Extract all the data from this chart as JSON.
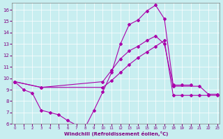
{
  "xlabel": "Windchill (Refroidissement éolien,°C)",
  "bg_color": "#c8eef0",
  "line_color": "#aa00aa",
  "grid_color": "#ffffff",
  "xlim": [
    -0.3,
    23.3
  ],
  "ylim": [
    6.0,
    16.6
  ],
  "yticks": [
    6,
    7,
    8,
    9,
    10,
    11,
    12,
    13,
    14,
    15,
    16
  ],
  "xticks": [
    0,
    1,
    2,
    3,
    4,
    5,
    6,
    7,
    8,
    9,
    10,
    11,
    12,
    13,
    14,
    15,
    16,
    17,
    18,
    19,
    20,
    21,
    22,
    23
  ],
  "line1_x": [
    0,
    1,
    2,
    3,
    4,
    5,
    6,
    7,
    8,
    9,
    10,
    11,
    12,
    13,
    14,
    15,
    16,
    17,
    18,
    19,
    20,
    21,
    22,
    23
  ],
  "line1_y": [
    9.7,
    9.0,
    8.7,
    7.2,
    7.0,
    6.8,
    6.3,
    5.9,
    5.7,
    7.2,
    8.8,
    10.5,
    13.0,
    14.7,
    15.1,
    15.9,
    16.4,
    15.2,
    9.4,
    9.4,
    9.4,
    null,
    null,
    null
  ],
  "line2_x": [
    0,
    3,
    10,
    11,
    12,
    13,
    14,
    15,
    16,
    17,
    18,
    21,
    22,
    23
  ],
  "line2_y": [
    9.7,
    9.2,
    9.7,
    10.7,
    11.7,
    12.4,
    12.8,
    13.3,
    13.7,
    13.0,
    9.3,
    9.3,
    8.6,
    8.6
  ],
  "line3_x": [
    0,
    3,
    10,
    11,
    12,
    13,
    14,
    15,
    16,
    17,
    18,
    19,
    20,
    21,
    22,
    23
  ],
  "line3_y": [
    9.7,
    9.2,
    9.2,
    9.8,
    10.5,
    11.2,
    11.8,
    12.3,
    12.8,
    13.3,
    8.5,
    8.5,
    8.5,
    8.5,
    8.5,
    8.5
  ]
}
